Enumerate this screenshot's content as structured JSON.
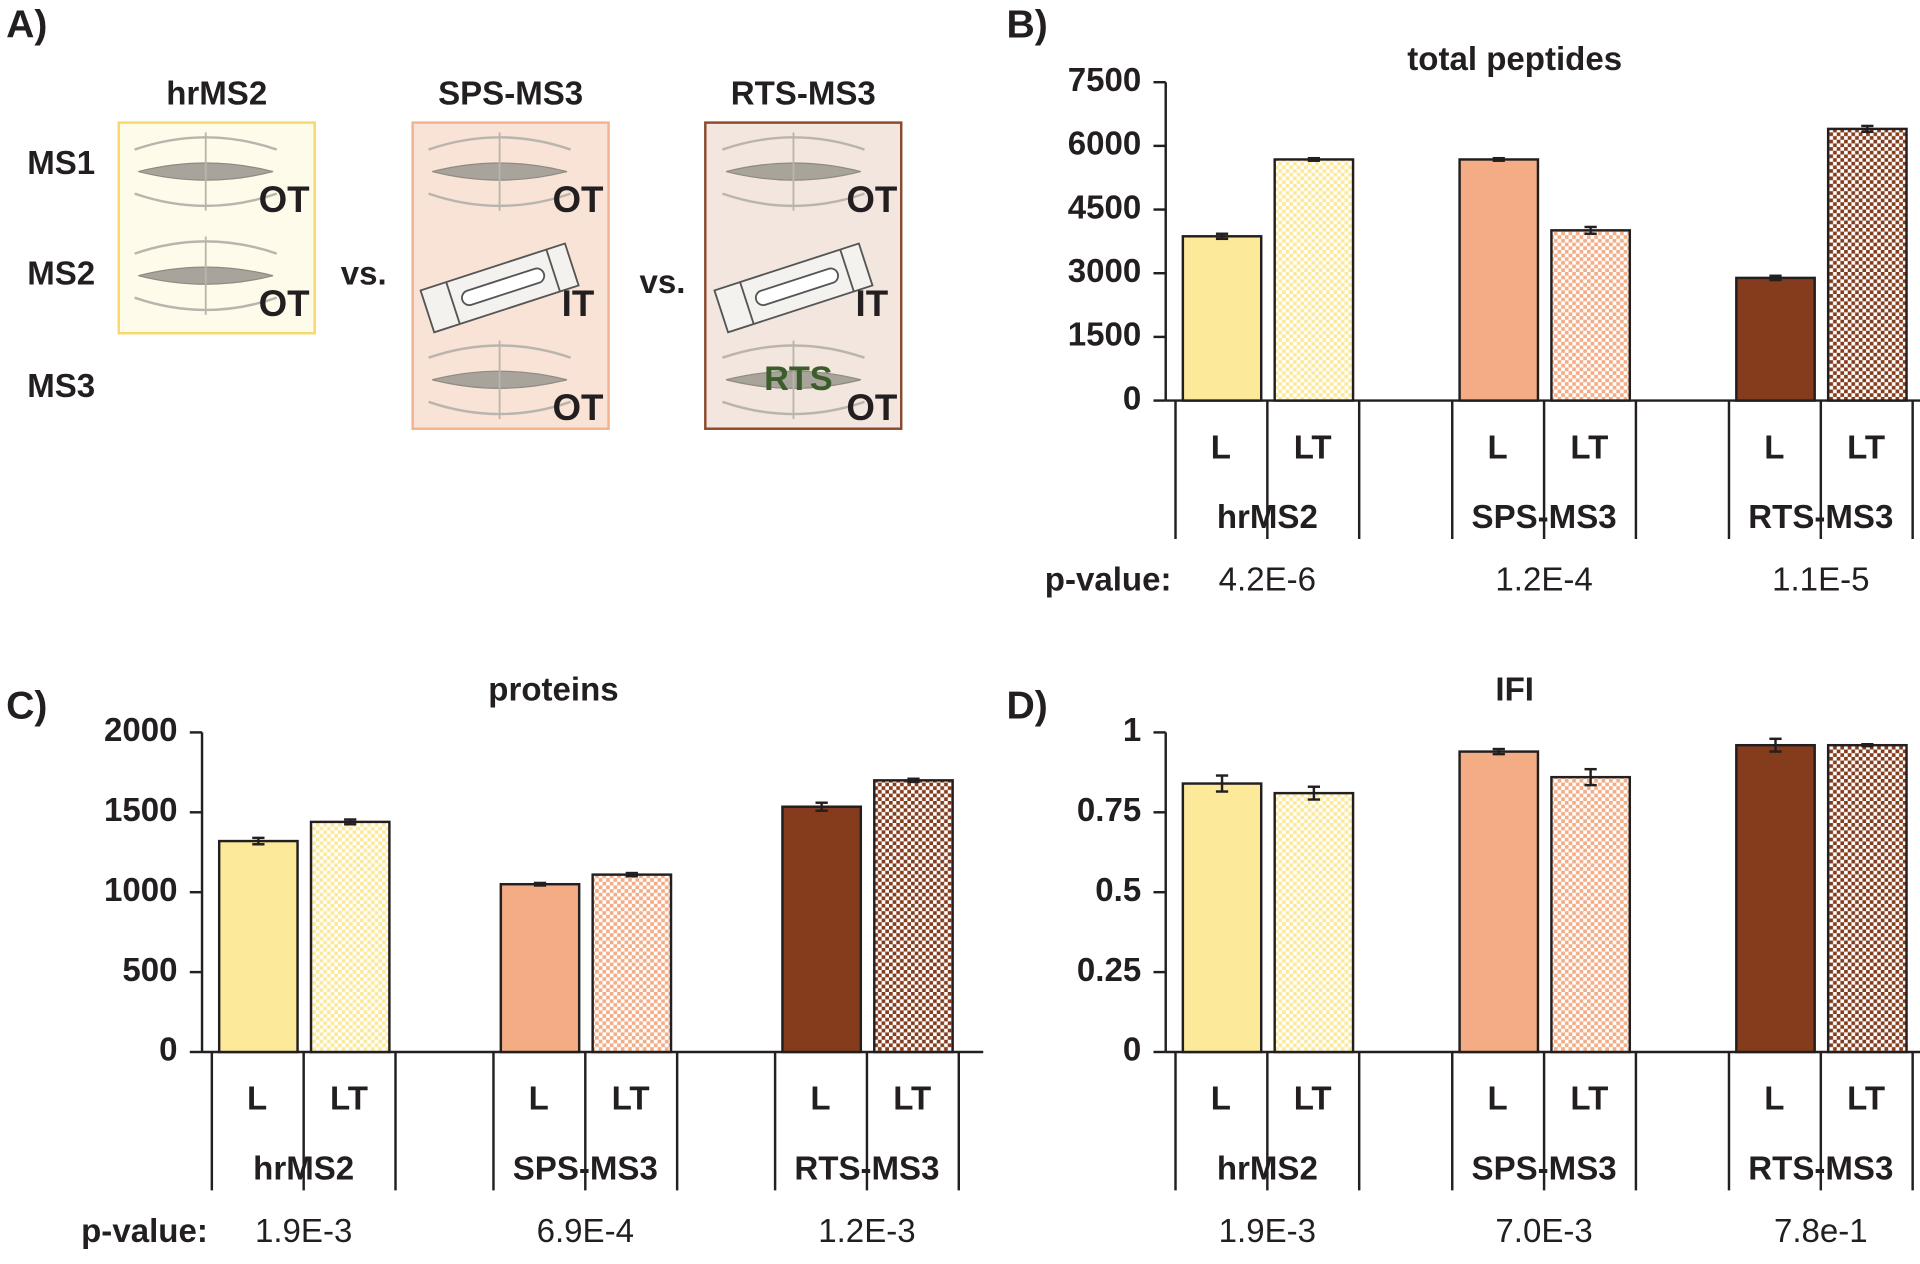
{
  "diagram": {
    "label": "A)",
    "methods": [
      {
        "title": "hrMS2",
        "analyzers": [
          "OT",
          "OT"
        ]
      },
      {
        "title": "SPS-MS3",
        "analyzers": [
          "OT",
          "IT",
          "OT"
        ]
      },
      {
        "title": "RTS-MS3",
        "analyzers": [
          "OT",
          "IT",
          "OT"
        ],
        "tag": "RTS"
      }
    ],
    "stages": [
      "MS1",
      "MS2",
      "MS3"
    ],
    "separator": "vs."
  },
  "chart_data": [
    {
      "type": "bar",
      "panel": "B)",
      "title": "total peptides",
      "categories": [
        "hrMS2",
        "SPS-MS3",
        "RTS-MS3"
      ],
      "colors": [
        "#fce99a",
        "#f4ac84",
        "#843c1c"
      ],
      "series": [
        {
          "name": "L",
          "values": [
            3870,
            5680,
            2890
          ],
          "errors": [
            60,
            30,
            50
          ],
          "pattern": false
        },
        {
          "name": "LT",
          "values": [
            5680,
            4010,
            6400
          ],
          "errors": [
            30,
            80,
            70
          ],
          "pattern": true
        }
      ],
      "p_label": "p-value:",
      "p_values": [
        "4.2E-6",
        "1.2E-4",
        "1.1E-5"
      ],
      "ylim": [
        0,
        7500
      ],
      "yticks": [
        0,
        1500,
        3000,
        4500,
        6000,
        7500
      ]
    },
    {
      "type": "bar",
      "panel": "C)",
      "title": "proteins",
      "categories": [
        "hrMS2",
        "SPS-MS3",
        "RTS-MS3"
      ],
      "colors": [
        "#fce99a",
        "#f4ac84",
        "#843c1c"
      ],
      "series": [
        {
          "name": "L",
          "values": [
            1320,
            1050,
            1535
          ],
          "errors": [
            20,
            8,
            25
          ],
          "pattern": false
        },
        {
          "name": "LT",
          "values": [
            1440,
            1110,
            1700
          ],
          "errors": [
            15,
            10,
            10
          ],
          "pattern": true
        }
      ],
      "p_label": "p-value:",
      "p_values": [
        "1.9E-3",
        "6.9E-4",
        "1.2E-3"
      ],
      "ylim": [
        0,
        2000
      ],
      "yticks": [
        0,
        500,
        1000,
        1500,
        2000
      ]
    },
    {
      "type": "bar",
      "panel": "D)",
      "title": "IFI",
      "categories": [
        "hrMS2",
        "SPS-MS3",
        "RTS-MS3"
      ],
      "colors": [
        "#fce99a",
        "#f4ac84",
        "#843c1c"
      ],
      "series": [
        {
          "name": "L",
          "values": [
            0.84,
            0.94,
            0.96
          ],
          "errors": [
            0.025,
            0.008,
            0.02
          ],
          "pattern": false
        },
        {
          "name": "LT",
          "values": [
            0.81,
            0.86,
            0.96
          ],
          "errors": [
            0.02,
            0.025,
            0.003
          ],
          "pattern": true
        }
      ],
      "p_values": [
        "1.9E-3",
        "7.0E-3",
        "7.8e-1"
      ],
      "ylim": [
        0,
        1
      ],
      "yticks": [
        0,
        0.25,
        0.5,
        0.75,
        1
      ]
    }
  ]
}
